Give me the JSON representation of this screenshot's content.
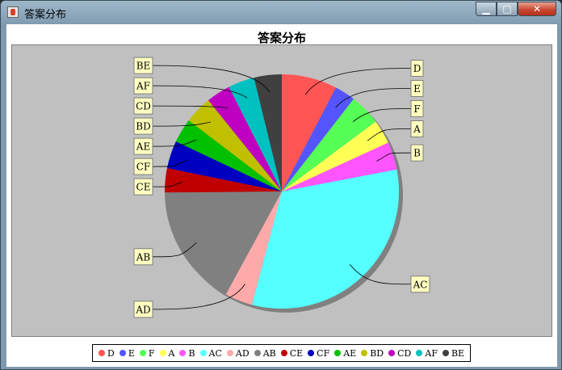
{
  "window": {
    "title": "答案分布",
    "min_label": "▁",
    "max_label": "□",
    "close_label": "✕"
  },
  "chart_data": {
    "type": "pie",
    "title": "答案分布",
    "slices": [
      {
        "label": "D",
        "value": 8,
        "color": "#ff5555"
      },
      {
        "label": "E",
        "value": 3,
        "color": "#5555ff"
      },
      {
        "label": "F",
        "value": 4.5,
        "color": "#55ff55"
      },
      {
        "label": "A",
        "value": 3.5,
        "color": "#ffff55"
      },
      {
        "label": "B",
        "value": 4,
        "color": "#ff55ff"
      },
      {
        "label": "AC",
        "value": 33.6,
        "color": "#55ffff"
      },
      {
        "label": "AD",
        "value": 4,
        "color": "#ffaaaa"
      },
      {
        "label": "AB",
        "value": 17.7,
        "color": "#808080"
      },
      {
        "label": "CE",
        "value": 3.5,
        "color": "#c00000"
      },
      {
        "label": "CF",
        "value": 4,
        "color": "#0000c0"
      },
      {
        "label": "AE",
        "value": 3.5,
        "color": "#00c000"
      },
      {
        "label": "BD",
        "value": 4,
        "color": "#c0c000"
      },
      {
        "label": "CD",
        "value": 3.5,
        "color": "#c000c0"
      },
      {
        "label": "AF",
        "value": 3.8,
        "color": "#00c0c0"
      },
      {
        "label": "BE",
        "value": 4,
        "color": "#404040"
      }
    ],
    "legend_placement": "bottom",
    "background": "#c0c0c0"
  }
}
